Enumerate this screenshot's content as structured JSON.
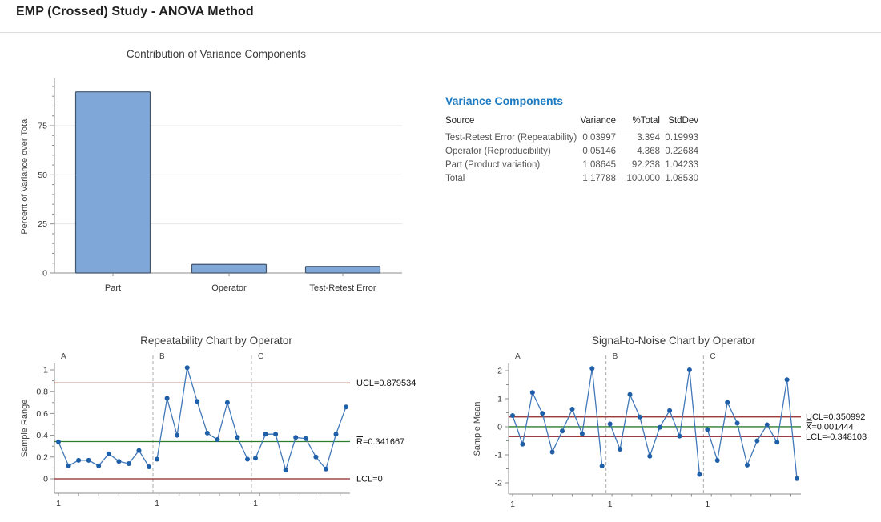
{
  "page": {
    "title": "EMP (Crossed) Study - ANOVA Method"
  },
  "colors": {
    "heading_blue": "#1b7ac1",
    "bar_fill": "#7fa8d8",
    "bar_border": "#44546a",
    "point": "#1f5fa8",
    "line": "#4278b8",
    "control_limit": "#8e2323",
    "center_line": "#2b7d2b",
    "separator": "#ababab",
    "grid": "#e7e7e7",
    "axis": "#8c8c8c"
  },
  "variance_table": {
    "title": "Variance Components",
    "columns": [
      "Source",
      "Variance",
      "%Total",
      "StdDev"
    ],
    "rows": [
      [
        "Test-Retest Error (Repeatability)",
        "0.03997",
        "3.394",
        "0.19993"
      ],
      [
        "Operator (Reproducibility)",
        "0.05146",
        "4.368",
        "0.22684"
      ],
      [
        "Part (Product variation)",
        "1.08645",
        "92.238",
        "1.04233"
      ],
      [
        "Total",
        "1.17788",
        "100.000",
        "1.08530"
      ]
    ]
  },
  "chart_data": [
    {
      "id": "contribution-bar",
      "type": "bar",
      "title": "Contribution of Variance Components",
      "ylabel": "Percent of Variance over Total",
      "xlabel": "",
      "categories": [
        "Part",
        "Operator",
        "Test-Retest Error"
      ],
      "values": [
        92.238,
        4.368,
        3.394
      ],
      "ylim": [
        0,
        100
      ],
      "yticks": [
        0,
        25,
        50,
        75
      ],
      "minor_step": 5,
      "grid": true
    },
    {
      "id": "repeatability",
      "type": "line",
      "title": "Repeatability Chart by Operator",
      "ylabel": "Sample Range",
      "groups": [
        "A",
        "B",
        "C"
      ],
      "x_first_tick_label": "1",
      "yticks": [
        0,
        0.2,
        0.4,
        0.6,
        0.8,
        1
      ],
      "major_step": 0.2,
      "minor_step": 0.1,
      "ylim": [
        -0.1,
        1.08
      ],
      "legend_position": "right",
      "control_lines": [
        {
          "type": "ucl",
          "value": 0.879534,
          "label": "UCL=0.879534"
        },
        {
          "type": "center",
          "value": 0.341667,
          "label": "R=0.341667",
          "accent": "bar"
        },
        {
          "type": "lcl",
          "value": 0,
          "label": "LCL=0"
        }
      ],
      "series": [
        {
          "name": "A",
          "values": [
            0.34,
            0.12,
            0.17,
            0.17,
            0.12,
            0.23,
            0.16,
            0.14,
            0.26,
            0.11
          ]
        },
        {
          "name": "B",
          "values": [
            0.18,
            0.74,
            0.4,
            1.02,
            0.71,
            0.42,
            0.36,
            0.7,
            0.38,
            0.18
          ]
        },
        {
          "name": "C",
          "values": [
            0.19,
            0.41,
            0.41,
            0.08,
            0.38,
            0.37,
            0.2,
            0.09,
            0.41,
            0.66
          ]
        }
      ]
    },
    {
      "id": "signal-to-noise",
      "type": "line",
      "title": "Signal-to-Noise Chart by Operator",
      "ylabel": "Sample Mean",
      "groups": [
        "A",
        "B",
        "C"
      ],
      "x_first_tick_label": "1",
      "yticks": [
        -2,
        -1,
        0,
        1,
        2
      ],
      "major_step": 1,
      "minor_step": 0.5,
      "ylim": [
        -2.4,
        2.4
      ],
      "legend_position": "right",
      "control_lines": [
        {
          "type": "ucl",
          "value": 0.350992,
          "label": "UCL=0.350992"
        },
        {
          "type": "center",
          "value": 0.001444,
          "label": "X=0.001444",
          "accent": "dbar"
        },
        {
          "type": "lcl",
          "value": -0.348103,
          "label": "LCL=-0.348103"
        }
      ],
      "series": [
        {
          "name": "A",
          "values": [
            0.4,
            -0.62,
            1.22,
            0.48,
            -0.9,
            -0.15,
            0.63,
            -0.25,
            2.08,
            -1.4
          ]
        },
        {
          "name": "B",
          "values": [
            0.1,
            -0.8,
            1.15,
            0.35,
            -1.05,
            -0.02,
            0.58,
            -0.33,
            2.03,
            -1.7
          ]
        },
        {
          "name": "C",
          "values": [
            -0.1,
            -1.2,
            0.87,
            0.13,
            -1.37,
            -0.5,
            0.07,
            -0.55,
            1.68,
            -1.85
          ]
        }
      ]
    }
  ]
}
